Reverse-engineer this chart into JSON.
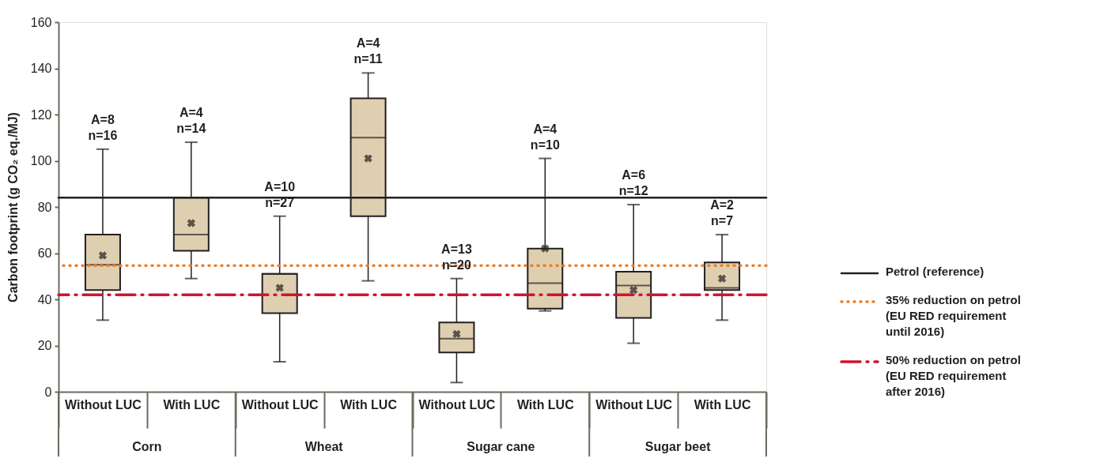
{
  "chart_data": {
    "type": "box",
    "ylabel": "Carbon footprint (g CO₂ eq./MJ)",
    "categories": [
      "Without LUC",
      "With LUC",
      "Without LUC",
      "With LUC",
      "Without LUC",
      "With LUC",
      "Without LUC",
      "With LUC"
    ],
    "ylim": [
      0,
      160
    ],
    "yticks": [
      0,
      20,
      40,
      60,
      80,
      100,
      120,
      140,
      160
    ],
    "grid": false,
    "legend": "right",
    "marker": "cross",
    "series": [
      {
        "color": "#dfcfb1",
        "boxes": [
          {
            "low": 31,
            "q1": 44,
            "median": 55,
            "q3": 68,
            "high": 105,
            "mean": 59
          },
          {
            "low": 49,
            "q1": 61,
            "median": 68,
            "q3": 84,
            "high": 108,
            "mean": 73
          },
          {
            "low": 13,
            "q1": 34,
            "median": 51,
            "q3": 51,
            "high": 76,
            "mean": 45
          },
          {
            "low": 48,
            "q1": 76,
            "median": 110,
            "q3": 127,
            "high": 138,
            "mean": 101
          },
          {
            "low": 4,
            "q1": 17,
            "median": 23,
            "q3": 30,
            "high": 49,
            "mean": 25
          },
          {
            "low": 35,
            "q1": 36,
            "median": 47,
            "q3": 62,
            "high": 101,
            "mean": 62
          },
          {
            "low": 21,
            "q1": 32,
            "median": 46,
            "q3": 52,
            "high": 81,
            "mean": 44
          },
          {
            "low": 31,
            "q1": 44,
            "median": 45,
            "q3": 56,
            "high": 68,
            "mean": 49
          }
        ]
      }
    ],
    "ref_lines": [
      {
        "axis": "y",
        "value": 84,
        "label": "Petrol (reference)",
        "color": "#231f20",
        "line_style": "solid"
      },
      {
        "axis": "y",
        "value": 54.6,
        "label": "35% reduction on petrol\n(EU RED requirement\nuntil 2016)",
        "color": "#f07c22",
        "line_style": "dotted"
      },
      {
        "axis": "y",
        "value": 42,
        "label": "50% reduction on petrol\n(EU RED requirement\nafter 2016)",
        "color": "#d2132f",
        "line_style": "dashdot"
      }
    ],
    "annotations": [
      "A=8\nn=16",
      "A=4\nn=14",
      "A=10\nn=27",
      "A=4\nn=11",
      "A=13\nn=20",
      "A=4\nn=10",
      "A=6\nn=12",
      "A=2\nn=7",
      "Corn",
      "Wheat",
      "Sugar cane",
      "Sugar beet"
    ]
  }
}
